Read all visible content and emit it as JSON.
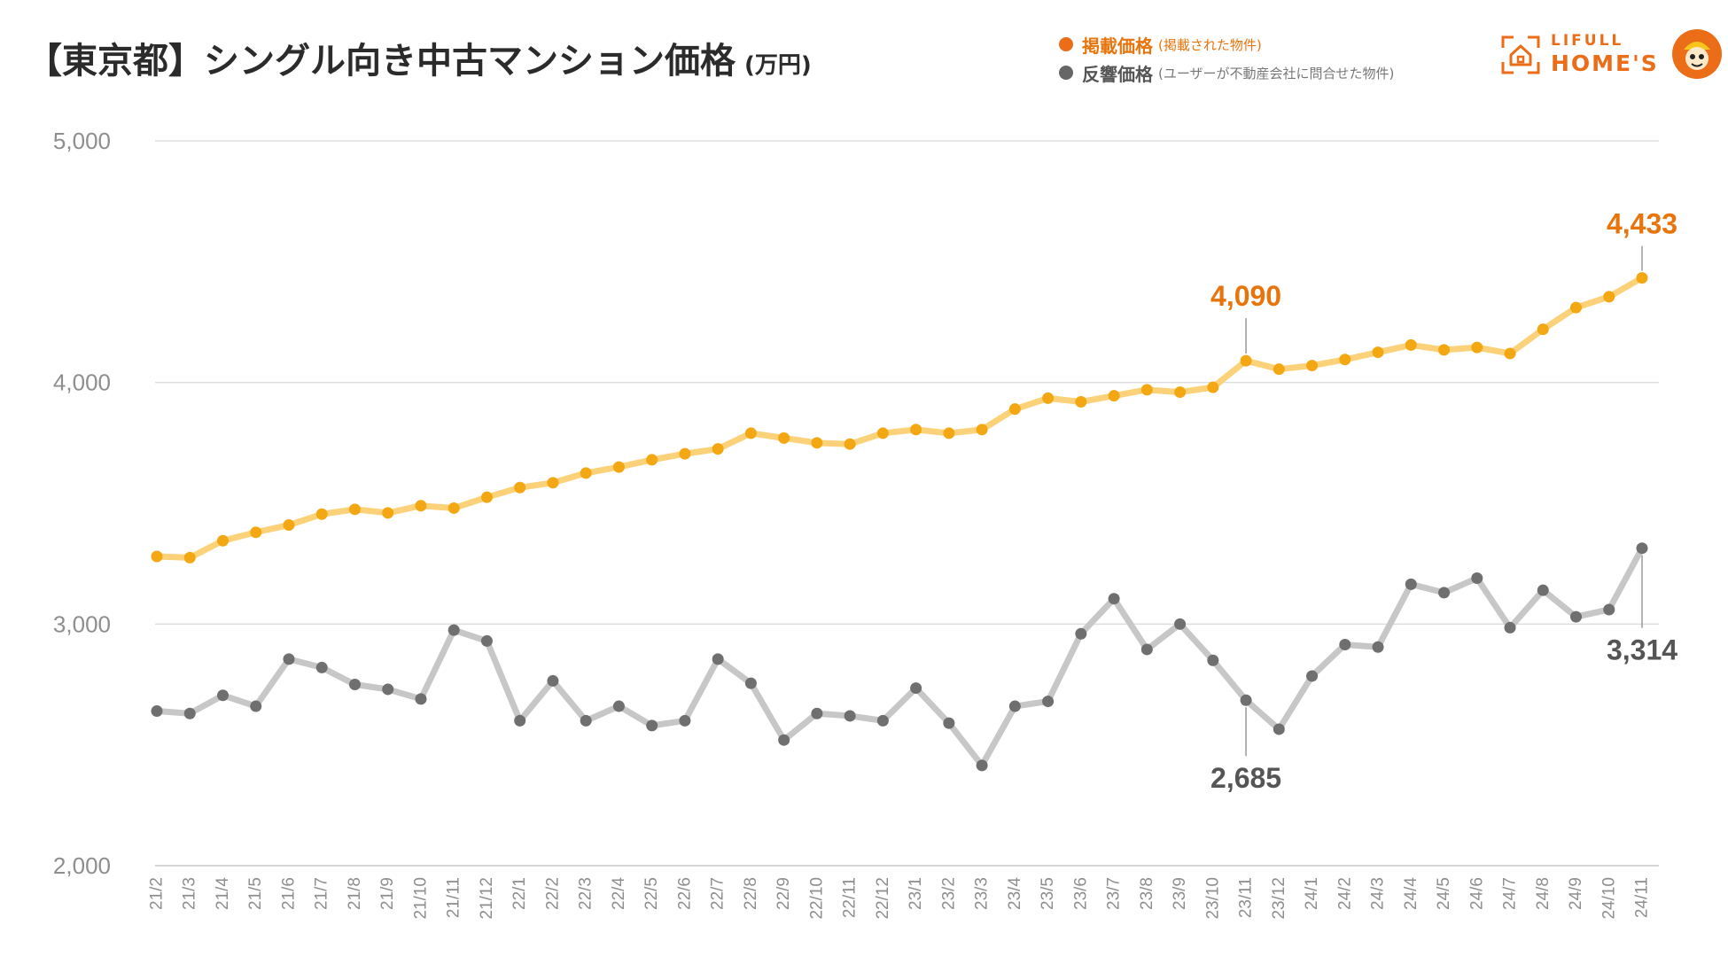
{
  "title": {
    "main": "【東京都】シングル向き中古マンション価格",
    "unit": "(万円)"
  },
  "legend": {
    "listed": {
      "label": "掲載価格",
      "note": "(掲載された物件)",
      "color": "#f3a712"
    },
    "inquired": {
      "label": "反響価格",
      "note": "(ユーザーが不動産会社に問合せた物件)",
      "color": "#7a7a7a"
    }
  },
  "logo": {
    "line1": "LIFULL",
    "line2": "HOME'S"
  },
  "chart_data": {
    "type": "line",
    "title": "【東京都】シングル向き中古マンション価格",
    "ylabel": "万円",
    "ylim": [
      2000,
      5000
    ],
    "yticks": [
      5000,
      4000,
      3000,
      2000
    ],
    "ytick_labels": [
      "5,000",
      "4,000",
      "3,000",
      "2,000"
    ],
    "categories": [
      "21/2",
      "21/3",
      "21/4",
      "21/5",
      "21/6",
      "21/7",
      "21/8",
      "21/9",
      "21/10",
      "21/11",
      "21/12",
      "22/1",
      "22/2",
      "22/3",
      "22/4",
      "22/5",
      "22/6",
      "22/7",
      "22/8",
      "22/9",
      "22/10",
      "22/11",
      "22/12",
      "23/1",
      "23/2",
      "23/3",
      "23/4",
      "23/5",
      "23/6",
      "23/7",
      "23/8",
      "23/9",
      "23/10",
      "23/11",
      "23/12",
      "24/1",
      "24/2",
      "24/3",
      "24/4",
      "24/5",
      "24/6",
      "24/7",
      "24/8",
      "24/9",
      "24/10",
      "24/11"
    ],
    "series": [
      {
        "name": "掲載価格",
        "color": "#f3a712",
        "values": [
          3280,
          3275,
          3345,
          3380,
          3410,
          3455,
          3475,
          3460,
          3490,
          3480,
          3525,
          3565,
          3585,
          3625,
          3650,
          3680,
          3705,
          3725,
          3790,
          3770,
          3750,
          3745,
          3790,
          3805,
          3790,
          3805,
          3890,
          3935,
          3920,
          3945,
          3970,
          3960,
          3980,
          4090,
          4055,
          4070,
          4095,
          4125,
          4155,
          4135,
          4145,
          4120,
          4220,
          4310,
          4355,
          4433
        ]
      },
      {
        "name": "反響価格",
        "color": "#7a7a7a",
        "values": [
          2640,
          2630,
          2705,
          2660,
          2855,
          2820,
          2750,
          2730,
          2690,
          2975,
          2930,
          2600,
          2765,
          2600,
          2660,
          2580,
          2600,
          2855,
          2755,
          2520,
          2630,
          2620,
          2600,
          2735,
          2590,
          2415,
          2660,
          2680,
          2960,
          3105,
          2895,
          3000,
          2850,
          2685,
          2565,
          2785,
          2915,
          2905,
          3165,
          3130,
          3190,
          2985,
          3140,
          3030,
          3060,
          3314
        ]
      }
    ],
    "annotations": [
      {
        "series": 0,
        "index": 33,
        "label": "4,090"
      },
      {
        "series": 0,
        "index": 45,
        "label": "4,433"
      },
      {
        "series": 1,
        "index": 33,
        "label": "2,685"
      },
      {
        "series": 1,
        "index": 45,
        "label": "3,314"
      }
    ]
  }
}
